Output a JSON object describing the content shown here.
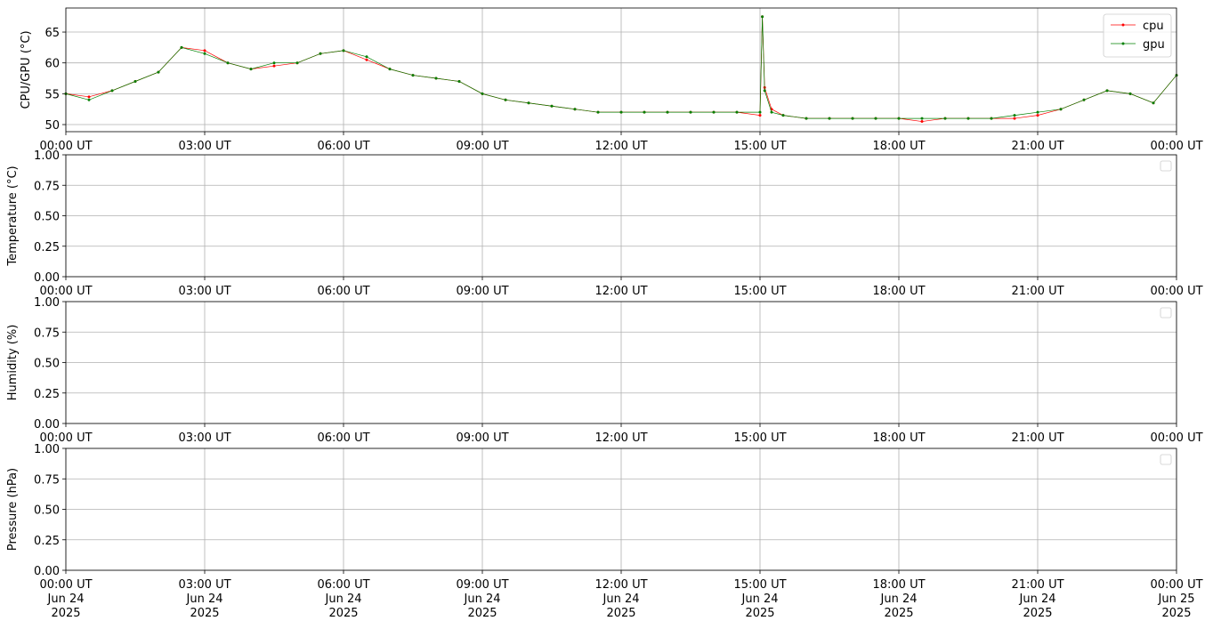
{
  "chart_data": [
    {
      "type": "line",
      "ylabel": "CPU/GPU (°C)",
      "legend": "upper right",
      "grid": true,
      "xlim": [
        0,
        24
      ],
      "xticks": [
        {
          "value": 0,
          "label": "00:00 UT"
        },
        {
          "value": 3,
          "label": "03:00 UT"
        },
        {
          "value": 6,
          "label": "06:00 UT"
        },
        {
          "value": 9,
          "label": "09:00 UT"
        },
        {
          "value": 12,
          "label": "12:00 UT"
        },
        {
          "value": 15,
          "label": "15:00 UT"
        },
        {
          "value": 18,
          "label": "18:00 UT"
        },
        {
          "value": 21,
          "label": "21:00 UT"
        },
        {
          "value": 24,
          "label": "00:00 UT"
        }
      ],
      "ylim": [
        48.85,
        68.9
      ],
      "yticks": [
        50,
        55,
        60,
        65
      ],
      "x": [
        0,
        0.5,
        1,
        1.5,
        2,
        2.5,
        3,
        3.5,
        4,
        4.5,
        5,
        5.5,
        6,
        6.5,
        7,
        7.5,
        8,
        8.5,
        9,
        9.5,
        10,
        10.5,
        11,
        11.5,
        12,
        12.5,
        13,
        13.5,
        14,
        14.5,
        15,
        15.05,
        15.1,
        15.25,
        15.5,
        16,
        16.5,
        17,
        17.5,
        18,
        18.5,
        19,
        19.5,
        20,
        20.5,
        21,
        21.5,
        22,
        22.5,
        23,
        23.5,
        24
      ],
      "series": [
        {
          "name": "cpu",
          "color": "#ff0000",
          "values": [
            55,
            54.5,
            55.5,
            57,
            58.5,
            62.5,
            62,
            60,
            59,
            59.5,
            60,
            61.5,
            62,
            60.5,
            59,
            58,
            57.5,
            57,
            55,
            54,
            53.5,
            53,
            52.5,
            52,
            52,
            52,
            52,
            52,
            52,
            52,
            51.5,
            67.5,
            56,
            52.5,
            51.5,
            51,
            51,
            51,
            51,
            51,
            50.5,
            51,
            51,
            51,
            51,
            51.5,
            52.5,
            54,
            55.5,
            55,
            53.5,
            58
          ]
        },
        {
          "name": "gpu",
          "color": "#008000",
          "values": [
            55,
            54,
            55.5,
            57,
            58.5,
            62.5,
            61.5,
            60,
            59,
            60,
            60,
            61.5,
            62,
            61,
            59,
            58,
            57.5,
            57,
            55,
            54,
            53.5,
            53,
            52.5,
            52,
            52,
            52,
            52,
            52,
            52,
            52,
            52,
            67.5,
            55.5,
            52,
            51.5,
            51,
            51,
            51,
            51,
            51,
            51,
            51,
            51,
            51,
            51.5,
            52,
            52.5,
            54,
            55.5,
            55,
            53.5,
            58
          ]
        }
      ]
    },
    {
      "type": "line",
      "ylabel": "Temperature (°C)",
      "legend": "upper right",
      "grid": true,
      "xlim": [
        0,
        24
      ],
      "xticks": [
        {
          "value": 0,
          "label": "00:00 UT"
        },
        {
          "value": 3,
          "label": "03:00 UT"
        },
        {
          "value": 6,
          "label": "06:00 UT"
        },
        {
          "value": 9,
          "label": "09:00 UT"
        },
        {
          "value": 12,
          "label": "12:00 UT"
        },
        {
          "value": 15,
          "label": "15:00 UT"
        },
        {
          "value": 18,
          "label": "18:00 UT"
        },
        {
          "value": 21,
          "label": "21:00 UT"
        },
        {
          "value": 24,
          "label": "00:00 UT"
        }
      ],
      "ylim": [
        0,
        1
      ],
      "yticks": [
        {
          "value": 0,
          "label": "0.00"
        },
        {
          "value": 0.25,
          "label": "0.25"
        },
        {
          "value": 0.5,
          "label": "0.50"
        },
        {
          "value": 0.75,
          "label": "0.75"
        },
        {
          "value": 1,
          "label": "1.00"
        }
      ],
      "series": []
    },
    {
      "type": "line",
      "ylabel": "Humidity (%)",
      "legend": "upper right",
      "grid": true,
      "xlim": [
        0,
        24
      ],
      "xticks": [
        {
          "value": 0,
          "label": "00:00 UT"
        },
        {
          "value": 3,
          "label": "03:00 UT"
        },
        {
          "value": 6,
          "label": "06:00 UT"
        },
        {
          "value": 9,
          "label": "09:00 UT"
        },
        {
          "value": 12,
          "label": "12:00 UT"
        },
        {
          "value": 15,
          "label": "15:00 UT"
        },
        {
          "value": 18,
          "label": "18:00 UT"
        },
        {
          "value": 21,
          "label": "21:00 UT"
        },
        {
          "value": 24,
          "label": "00:00 UT"
        }
      ],
      "ylim": [
        0,
        1
      ],
      "yticks": [
        {
          "value": 0,
          "label": "0.00"
        },
        {
          "value": 0.25,
          "label": "0.25"
        },
        {
          "value": 0.5,
          "label": "0.50"
        },
        {
          "value": 0.75,
          "label": "0.75"
        },
        {
          "value": 1,
          "label": "1.00"
        }
      ],
      "series": []
    },
    {
      "type": "line",
      "ylabel": "Pressure (hPa)",
      "legend": "upper right",
      "grid": true,
      "xlim": [
        0,
        24
      ],
      "xticks": [
        {
          "value": 0,
          "label": [
            "00:00 UT",
            "Jun 24",
            "2025"
          ]
        },
        {
          "value": 3,
          "label": [
            "03:00 UT",
            "Jun 24",
            "2025"
          ]
        },
        {
          "value": 6,
          "label": [
            "06:00 UT",
            "Jun 24",
            "2025"
          ]
        },
        {
          "value": 9,
          "label": [
            "09:00 UT",
            "Jun 24",
            "2025"
          ]
        },
        {
          "value": 12,
          "label": [
            "12:00 UT",
            "Jun 24",
            "2025"
          ]
        },
        {
          "value": 15,
          "label": [
            "15:00 UT",
            "Jun 24",
            "2025"
          ]
        },
        {
          "value": 18,
          "label": [
            "18:00 UT",
            "Jun 24",
            "2025"
          ]
        },
        {
          "value": 21,
          "label": [
            "21:00 UT",
            "Jun 24",
            "2025"
          ]
        },
        {
          "value": 24,
          "label": [
            "00:00 UT",
            "Jun 25",
            "2025"
          ]
        }
      ],
      "ylim": [
        0,
        1
      ],
      "yticks": [
        {
          "value": 0,
          "label": "0.00"
        },
        {
          "value": 0.25,
          "label": "0.25"
        },
        {
          "value": 0.5,
          "label": "0.50"
        },
        {
          "value": 0.75,
          "label": "0.75"
        },
        {
          "value": 1,
          "label": "1.00"
        }
      ],
      "series": []
    }
  ]
}
